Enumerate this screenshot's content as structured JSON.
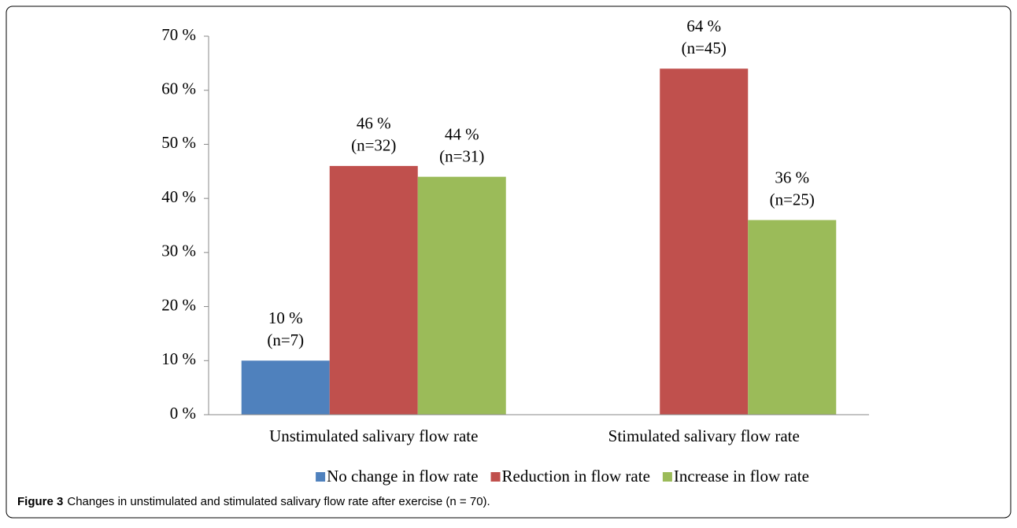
{
  "chart_data": {
    "type": "bar",
    "categories": [
      "Unstimulated salivary flow rate",
      "Stimulated salivary flow rate"
    ],
    "series": [
      {
        "name": "No change in flow rate",
        "color": "#4f81bd",
        "values": [
          10,
          null
        ],
        "value_labels": [
          "10 %",
          null
        ],
        "count_labels": [
          "(n=7)",
          null
        ]
      },
      {
        "name": "Reduction in flow rate",
        "color": "#c0504d",
        "values": [
          46,
          64
        ],
        "value_labels": [
          "46 %",
          "64 %"
        ],
        "count_labels": [
          "(n=32)",
          "(n=45)"
        ]
      },
      {
        "name": "Increase in flow rate",
        "color": "#9bbb59",
        "values": [
          44,
          36
        ],
        "value_labels": [
          "44 %",
          "36 %"
        ],
        "count_labels": [
          "(n=31)",
          "(n=25)"
        ]
      }
    ],
    "ylim": [
      0,
      70
    ],
    "yticks": [
      {
        "value": 0,
        "label": "0 %"
      },
      {
        "value": 10,
        "label": "10 %"
      },
      {
        "value": 20,
        "label": "20 %"
      },
      {
        "value": 30,
        "label": "30 %"
      },
      {
        "value": 40,
        "label": "40 %"
      },
      {
        "value": 50,
        "label": "50 %"
      },
      {
        "value": 60,
        "label": "60 %"
      },
      {
        "value": 70,
        "label": "70 %"
      }
    ],
    "grid": false,
    "legend": "bottom"
  },
  "figure": {
    "label": "Figure 3",
    "caption": "Changes in unstimulated and stimulated salivary flow rate after exercise (n = 70)."
  }
}
